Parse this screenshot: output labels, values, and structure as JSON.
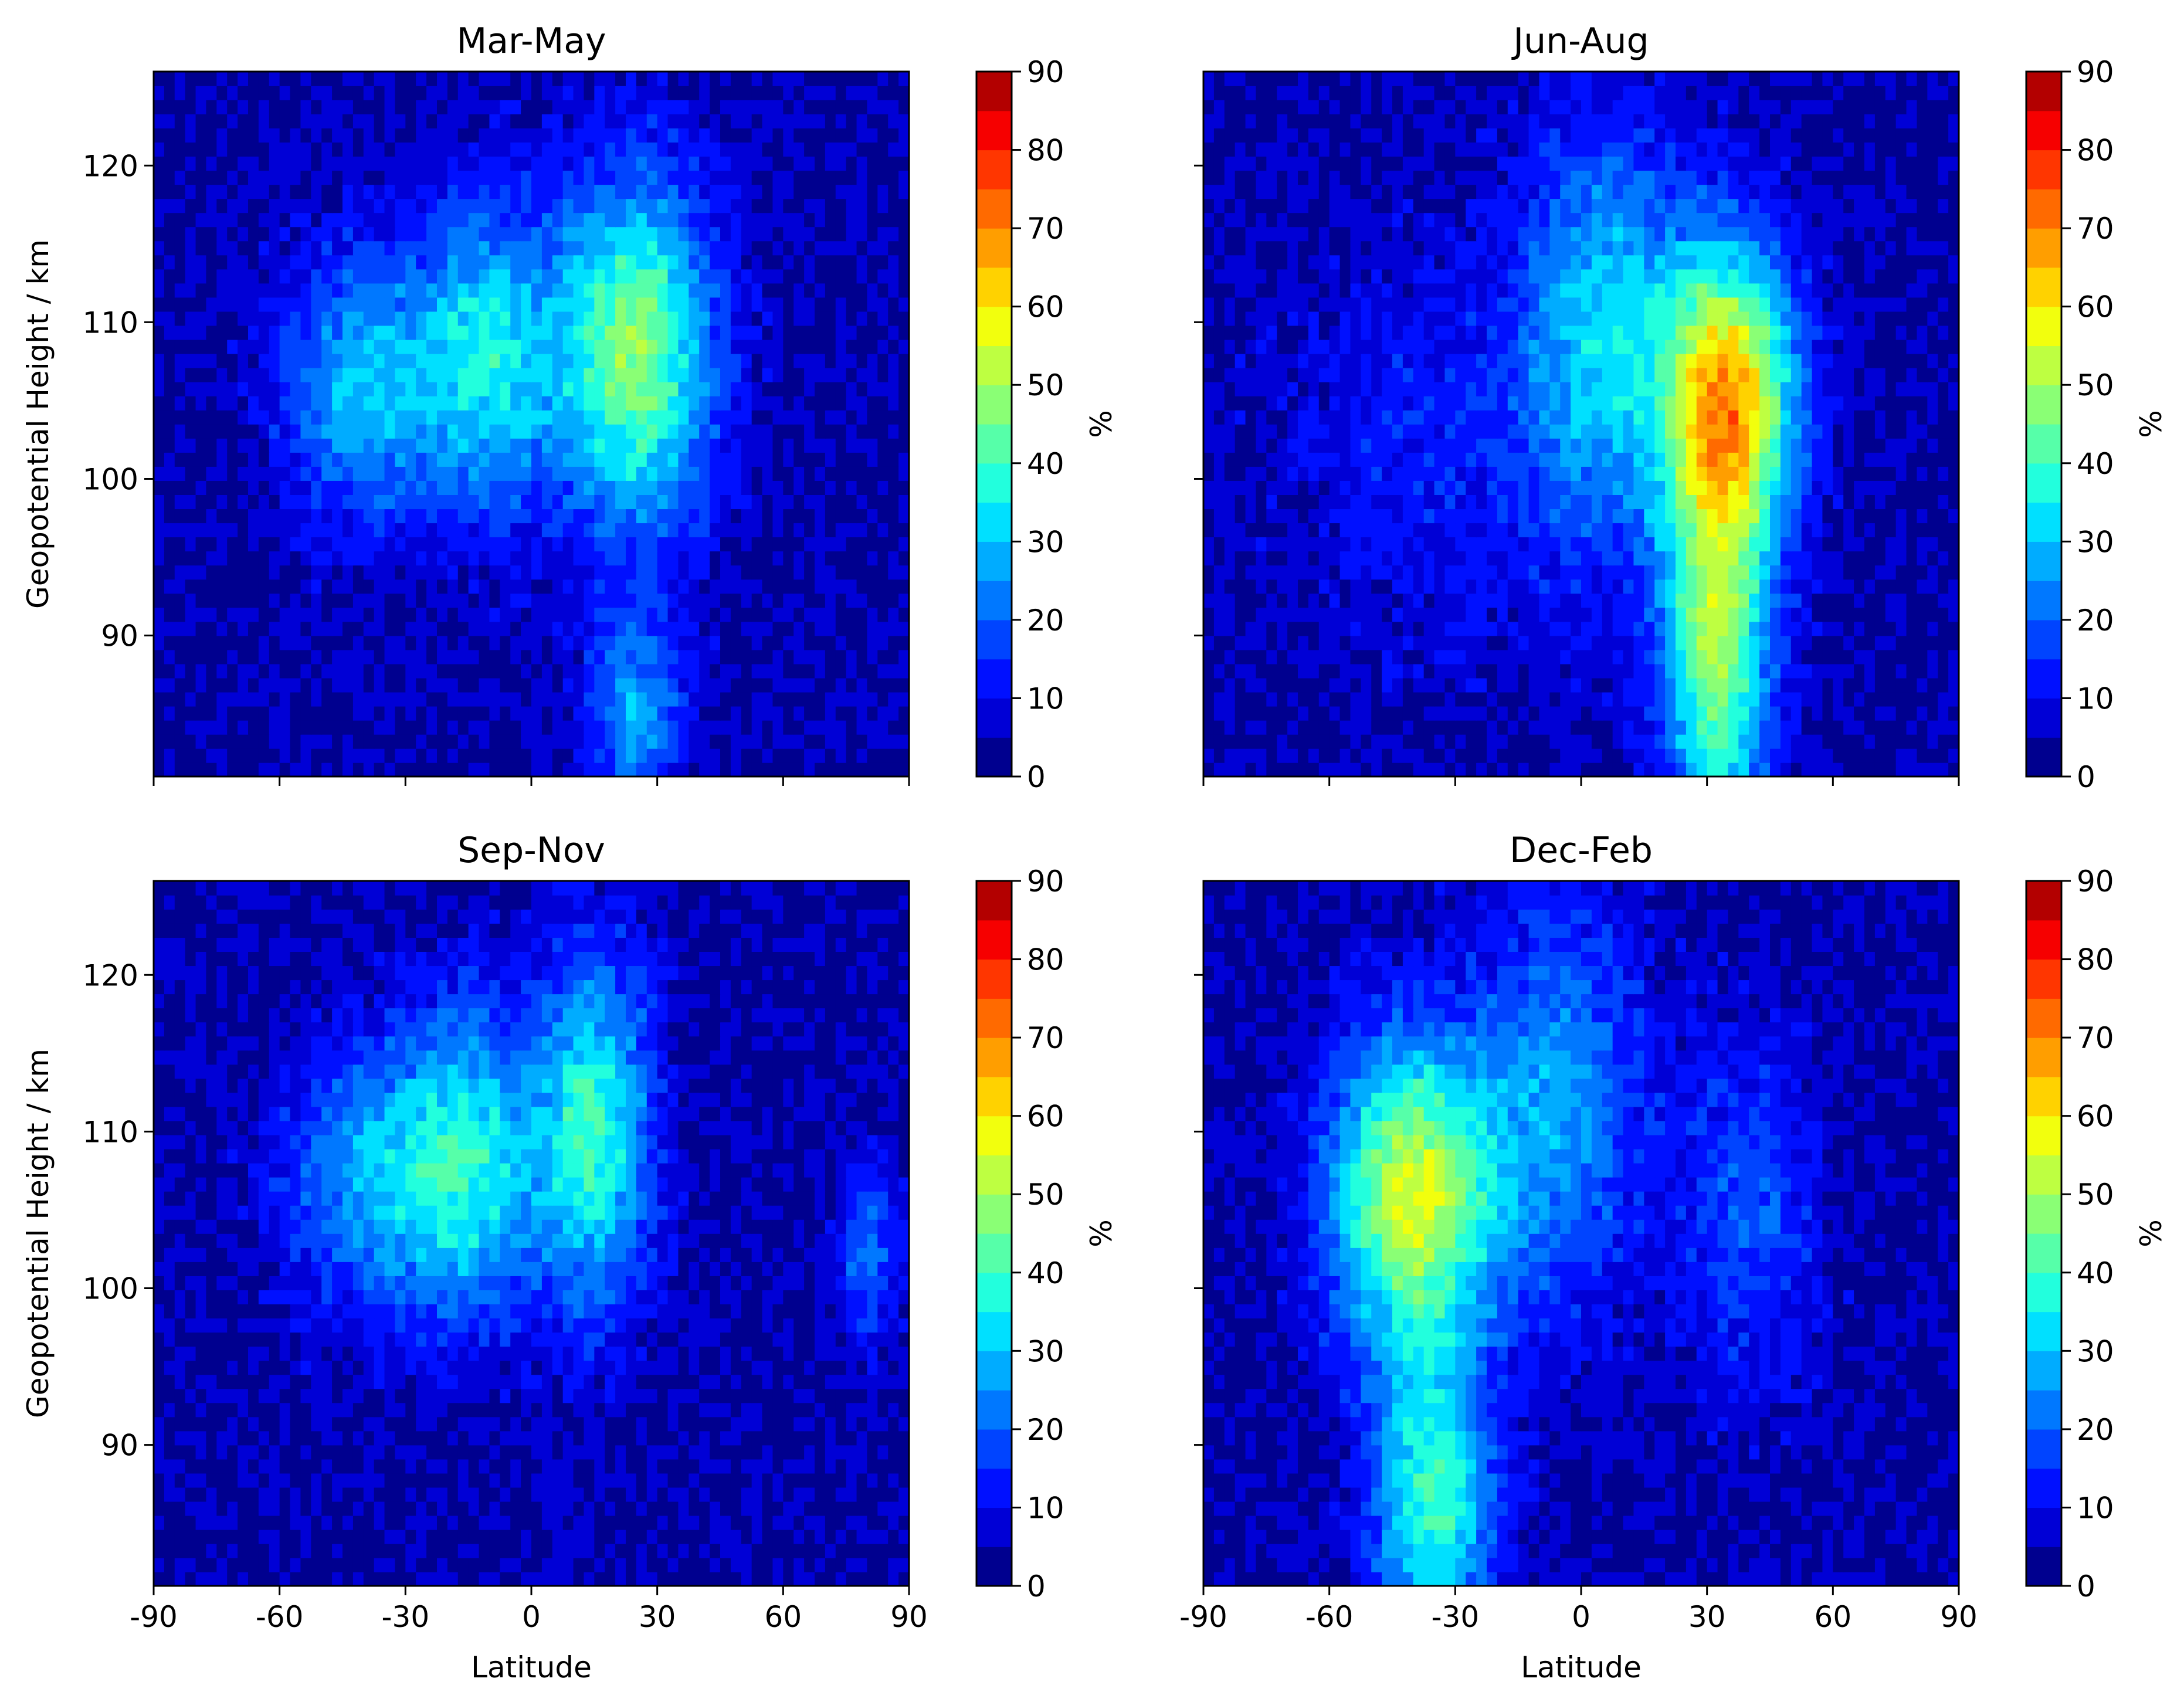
{
  "chart_data": [
    {
      "type": "heatmap",
      "subtype": "filled-contour",
      "title": "Mar-May",
      "xlabel": "",
      "ylabel": "Geopotential Height / km",
      "xlim": [
        -90,
        90
      ],
      "ylim": [
        81,
        126
      ],
      "xticks": [
        "-90",
        "-60",
        "-30",
        "0",
        "30",
        "60",
        "90"
      ],
      "xticks_labeled": false,
      "yticks": [
        "90",
        "100",
        "110",
        "120"
      ],
      "yticks_labeled": true,
      "colorbar": {
        "label": "%",
        "ticks": [
          "0",
          "10",
          "20",
          "30",
          "40",
          "50",
          "60",
          "70",
          "80",
          "90"
        ]
      },
      "features": [
        {
          "lat": -40,
          "height": 106,
          "peak": 32,
          "lat_spread": 14,
          "height_spread": 6
        },
        {
          "lat": -10,
          "height": 108,
          "peak": 36,
          "lat_spread": 12,
          "height_spread": 7
        },
        {
          "lat": 25,
          "height": 108,
          "peak": 52,
          "lat_spread": 13,
          "height_spread": 8
        },
        {
          "lat": 25,
          "height": 85,
          "peak": 30,
          "lat_spread": 8,
          "height_spread": 4
        }
      ]
    },
    {
      "type": "heatmap",
      "subtype": "filled-contour",
      "title": "Jun-Aug",
      "xlabel": "",
      "ylabel": "",
      "xlim": [
        -90,
        90
      ],
      "ylim": [
        81,
        126
      ],
      "xticks": [
        "-90",
        "-60",
        "-30",
        "0",
        "30",
        "60",
        "90"
      ],
      "xticks_labeled": false,
      "yticks": [
        "90",
        "100",
        "110",
        "120"
      ],
      "yticks_labeled": false,
      "colorbar": {
        "label": "%",
        "ticks": [
          "0",
          "10",
          "20",
          "30",
          "40",
          "50",
          "60",
          "70",
          "80",
          "90"
        ]
      },
      "features": [
        {
          "lat": 35,
          "height": 105,
          "peak": 72,
          "lat_spread": 11,
          "height_spread": 7
        },
        {
          "lat": 32,
          "height": 88,
          "peak": 50,
          "lat_spread": 9,
          "height_spread": 8
        },
        {
          "lat": 5,
          "height": 110,
          "peak": 32,
          "lat_spread": 13,
          "height_spread": 9
        },
        {
          "lat": -30,
          "height": 102,
          "peak": 14,
          "lat_spread": 30,
          "height_spread": 9
        }
      ]
    },
    {
      "type": "heatmap",
      "subtype": "filled-contour",
      "title": "Sep-Nov",
      "xlabel": "Latitude",
      "ylabel": "Geopotential Height / km",
      "xlim": [
        -90,
        90
      ],
      "ylim": [
        81,
        126
      ],
      "xticks": [
        "-90",
        "-60",
        "-30",
        "0",
        "30",
        "60",
        "90"
      ],
      "xticks_labeled": true,
      "yticks": [
        "90",
        "100",
        "110",
        "120"
      ],
      "yticks_labeled": true,
      "colorbar": {
        "label": "%",
        "ticks": [
          "0",
          "10",
          "20",
          "30",
          "40",
          "50",
          "60",
          "70",
          "80",
          "90"
        ]
      },
      "features": [
        {
          "lat": -40,
          "height": 107,
          "peak": 28,
          "lat_spread": 14,
          "height_spread": 6
        },
        {
          "lat": -15,
          "height": 108,
          "peak": 38,
          "lat_spread": 12,
          "height_spread": 7
        },
        {
          "lat": 15,
          "height": 110,
          "peak": 42,
          "lat_spread": 10,
          "height_spread": 8
        },
        {
          "lat": 80,
          "height": 102,
          "peak": 24,
          "lat_spread": 5,
          "height_spread": 4
        }
      ]
    },
    {
      "type": "heatmap",
      "subtype": "filled-contour",
      "title": "Dec-Feb",
      "xlabel": "Latitude",
      "ylabel": "",
      "xlim": [
        -90,
        90
      ],
      "ylim": [
        81,
        126
      ],
      "xticks": [
        "-90",
        "-60",
        "-30",
        "0",
        "30",
        "60",
        "90"
      ],
      "xticks_labeled": true,
      "yticks": [
        "90",
        "100",
        "110",
        "120"
      ],
      "yticks_labeled": false,
      "colorbar": {
        "label": "%",
        "ticks": [
          "0",
          "10",
          "20",
          "30",
          "40",
          "50",
          "60",
          "70",
          "80",
          "90"
        ]
      },
      "features": [
        {
          "lat": -40,
          "height": 106,
          "peak": 60,
          "lat_spread": 14,
          "height_spread": 7
        },
        {
          "lat": -35,
          "height": 86,
          "peak": 44,
          "lat_spread": 10,
          "height_spread": 7
        },
        {
          "lat": -5,
          "height": 112,
          "peak": 28,
          "lat_spread": 14,
          "height_spread": 9
        },
        {
          "lat": 40,
          "height": 105,
          "peak": 20,
          "lat_spread": 12,
          "height_spread": 8
        }
      ]
    }
  ],
  "colormap": {
    "levels": [
      0,
      5,
      10,
      15,
      20,
      25,
      30,
      35,
      40,
      45,
      50,
      55,
      60,
      65,
      70,
      75,
      80,
      85,
      90
    ],
    "colors": [
      "#00008f",
      "#0000d6",
      "#0010ff",
      "#0044ff",
      "#0078ff",
      "#00acff",
      "#00e0ff",
      "#22ffdd",
      "#56ffa9",
      "#8aff75",
      "#beff41",
      "#f2ff0d",
      "#ffd200",
      "#ff9e00",
      "#ff6a00",
      "#ff3600",
      "#f60000",
      "#b30000"
    ]
  }
}
